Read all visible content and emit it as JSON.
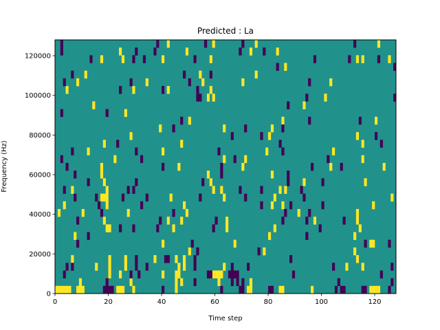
{
  "chart_data": {
    "type": "heatmap",
    "title": "Predicted : La",
    "xlabel": "Time step",
    "ylabel": "Frequency (Hz)",
    "xlim": [
      0,
      128
    ],
    "ylim": [
      0,
      128000
    ],
    "n_cols": 128,
    "n_rows": 33,
    "xticks": [
      0,
      20,
      40,
      60,
      80,
      100,
      120
    ],
    "xtick_labels": [
      "0",
      "20",
      "40",
      "60",
      "80",
      "100",
      "120"
    ],
    "yticks": [
      0,
      20000,
      40000,
      60000,
      80000,
      100000,
      120000
    ],
    "ytick_labels": [
      "0",
      "20000",
      "40000",
      "60000",
      "80000",
      "100000",
      "120000"
    ],
    "colormap": "viridis",
    "colors": {
      "low": "#440154",
      "mid": "#21918c",
      "high": "#fde725"
    },
    "values_legend": {
      "low": 0,
      "mid": 1,
      "high": 2
    },
    "background_value": 1,
    "high_cells_by_row": [
      [
        0,
        1,
        2,
        3,
        4,
        5,
        8,
        9,
        10,
        23,
        24,
        25,
        29,
        45,
        72,
        73,
        84,
        85,
        96,
        118,
        119,
        120,
        121
      ],
      [
        9,
        28,
        45,
        47,
        61,
        73
      ],
      [
        20,
        24,
        40,
        45,
        46,
        59,
        60,
        61,
        62
      ],
      [
        15,
        20,
        26,
        46,
        48,
        63,
        109,
        115
      ],
      [
        6,
        20,
        26,
        37,
        45,
        48,
        113
      ],
      [
        50,
        78,
        112
      ],
      [
        40,
        67,
        118,
        119
      ],
      [
        7,
        80,
        112
      ],
      [
        19,
        20,
        44,
        64,
        82,
        114
      ],
      [
        18,
        42,
        47,
        64,
        97,
        113
      ],
      [
        1,
        10,
        27,
        49,
        91,
        113
      ],
      [
        3,
        19,
        48,
        81,
        85,
        119
      ],
      [
        17,
        18,
        19,
        43,
        63,
        82,
        126
      ],
      [
        6,
        19,
        59,
        62,
        84,
        86
      ],
      [
        18,
        58,
        93,
        116
      ],
      [
        17,
        57,
        81
      ],
      [
        17,
        46,
        70,
        103,
        123
      ],
      [
        22,
        63,
        71,
        115
      ],
      [
        12,
        40,
        79,
        104
      ],
      [
        18,
        47,
        115
      ],
      [
        28,
        80,
        113
      ],
      [
        39,
        63,
        81
      ],
      [
        50,
        85,
        120
      ],
      [
        26
      ],
      [
        14,
        93
      ],
      [
        57,
        59,
        101
      ],
      [
        4,
        29,
        42,
        58
      ],
      [
        8,
        34,
        55,
        70,
        103
      ],
      [
        11,
        54,
        75
      ],
      [
        86
      ],
      [
        17,
        25,
        40,
        58,
        113,
        115,
        125
      ],
      [
        24,
        49,
        73,
        83
      ],
      [
        42,
        59,
        75,
        121
      ]
    ],
    "low_cells_by_row": [
      [
        18,
        19,
        20,
        21,
        40,
        62,
        69,
        70,
        80,
        81,
        105,
        107,
        108,
        115,
        116,
        125
      ],
      [
        19,
        52,
        66,
        68,
        70,
        106,
        126
      ],
      [
        3,
        28,
        31,
        57,
        58,
        65,
        66,
        67,
        68,
        89,
        122
      ],
      [
        4,
        6,
        30,
        34,
        52,
        66,
        72,
        104,
        126
      ],
      [
        30,
        41,
        42,
        52,
        88
      ],
      [
        53,
        76
      ],
      [
        8,
        51,
        116,
        125
      ],
      [
        12,
        94
      ],
      [
        24,
        29,
        38,
        59,
        99
      ],
      [
        8,
        39,
        60,
        85,
        94,
        108
      ],
      [
        17,
        44,
        86,
        95
      ],
      [
        16,
        32,
        77,
        88,
        100
      ],
      [
        7,
        15,
        25,
        34,
        54,
        71,
        93
      ],
      [
        3,
        27,
        29,
        69,
        77,
        92
      ],
      [
        12,
        30,
        55,
        87,
        100
      ],
      [
        7,
        62,
        87
      ],
      [
        4,
        40,
        62,
        96,
        107
      ],
      [
        2,
        32,
        67,
        102
      ],
      [
        6,
        30,
        61,
        85
      ],
      [
        23,
        84,
        122
      ],
      [
        66,
        77,
        120
      ],
      [
        44,
        71,
        85
      ],
      [
        47,
        95,
        114
      ],
      [
        2,
        19
      ],
      [
        87
      ],
      [
        53,
        54,
        94,
        127
      ],
      [
        24,
        40,
        53
      ],
      [
        3,
        28,
        50,
        95
      ],
      [
        6,
        48,
        58
      ],
      [
        83,
        127
      ],
      [
        13,
        29,
        33,
        52,
        97,
        110,
        121
      ],
      [
        2,
        30,
        37,
        69,
        78
      ],
      [
        2,
        38,
        56,
        70,
        112
      ]
    ]
  }
}
